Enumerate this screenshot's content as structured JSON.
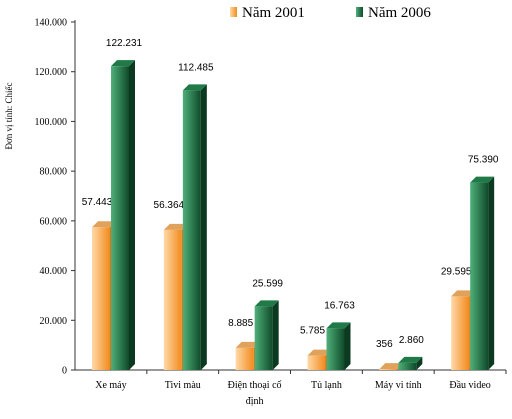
{
  "chart_data": {
    "type": "bar",
    "ylabel": "Đơn vị tính: Chiếc",
    "ylim": [
      0,
      140000
    ],
    "yticks": [
      0,
      20000,
      40000,
      60000,
      80000,
      100000,
      120000,
      140000
    ],
    "ytick_labels": [
      "0",
      "20.000",
      "40.000",
      "60.000",
      "80.000",
      "100.000",
      "120.000",
      "140.000"
    ],
    "categories": [
      [
        "Xe máy"
      ],
      [
        "Tivi màu"
      ],
      [
        "Điện thoại cố",
        "định"
      ],
      [
        "Tủ lạnh"
      ],
      [
        "Máy vi tính"
      ],
      [
        "Đầu video"
      ]
    ],
    "series": [
      {
        "name": "Năm 2001",
        "values": [
          57443,
          56364,
          8885,
          5785,
          356,
          29595
        ],
        "labels": [
          "57.443",
          "56.364",
          "8.885",
          "5.785",
          "356",
          "29.595"
        ],
        "color_light": "#ffd9a8",
        "color_dark": "#f28a1c",
        "color_side": "#d2761a"
      },
      {
        "name": "Năm 2006",
        "values": [
          122231,
          112485,
          25599,
          16763,
          2860,
          75390
        ],
        "labels": [
          "122.231",
          "112.485",
          "25.599",
          "16.763",
          "2.860",
          "75.390"
        ],
        "color_light": "#4fb07a",
        "color_dark": "#0f4a2a",
        "color_side": "#0b3a20"
      }
    ],
    "legend_position": "top",
    "grid": false
  }
}
